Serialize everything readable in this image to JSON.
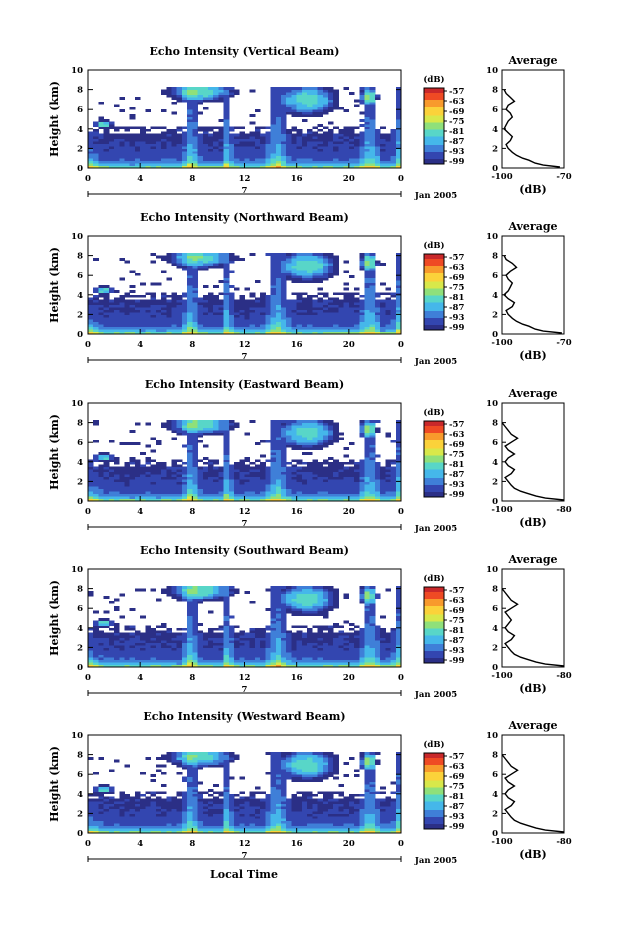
{
  "colors": {
    "scale": [
      "#2b2f86",
      "#3346b0",
      "#3f7fd8",
      "#45b7ea",
      "#58d6c8",
      "#8fe07a",
      "#d8e84a",
      "#fbd23a",
      "#f89a2c",
      "#ef4a24",
      "#c9282a"
    ],
    "axis": "#000000",
    "profile_line": "#000000",
    "background": "#ffffff"
  },
  "date_label": "Jan 2005",
  "day_marker": "7",
  "colorbar_unit": "(dB)",
  "colorbar_ticks": [
    "-57",
    "-63",
    "-69",
    "-75",
    "-81",
    "-87",
    "-93",
    "-99"
  ],
  "x_axis_label": "Local Time",
  "y_axis_label": "Height (km)",
  "average_title": "Average",
  "average_x_unit": "(dB)",
  "chart_data": [
    {
      "type": "heatmap",
      "title": "Echo Intensity (Vertical Beam)",
      "ylabel": "Height (km)",
      "ylim": [
        0,
        10
      ],
      "xlim": [
        0,
        24
      ],
      "x_ticks": [
        "0",
        "4",
        "8",
        "12",
        "16",
        "20",
        "0"
      ],
      "y_ticks": [
        "0",
        "2",
        "4",
        "6",
        "8",
        "10"
      ],
      "colorbar_ticks": [
        "-57",
        "-63",
        "-69",
        "-75",
        "-81",
        "-87",
        "-93",
        "-99"
      ],
      "average_profile": {
        "xlim": [
          -100,
          -70
        ],
        "x_ticks": [
          "-100",
          "-70"
        ],
        "height": [
          0.1,
          0.3,
          0.5,
          0.8,
          1.0,
          1.3,
          1.6,
          2.0,
          2.4,
          2.8,
          3.2,
          3.6,
          4.0,
          4.4,
          4.8,
          5.2,
          5.6,
          6.0,
          6.4,
          6.8,
          7.2,
          7.6,
          8.0
        ],
        "db": [
          -72,
          -80,
          -84,
          -87,
          -90,
          -93,
          -95,
          -97,
          -98,
          -96,
          -95,
          -97,
          -99,
          -98,
          -97,
          -95,
          -96,
          -98,
          -97,
          -94,
          -96,
          -98,
          -99
        ]
      }
    },
    {
      "type": "heatmap",
      "title": "Echo Intensity (Northward Beam)",
      "ylabel": "Height (km)",
      "ylim": [
        0,
        10
      ],
      "xlim": [
        0,
        24
      ],
      "x_ticks": [
        "0",
        "4",
        "8",
        "12",
        "16",
        "20",
        "0"
      ],
      "y_ticks": [
        "0",
        "2",
        "4",
        "6",
        "8",
        "10"
      ],
      "colorbar_ticks": [
        "-57",
        "-63",
        "-69",
        "-75",
        "-81",
        "-87",
        "-93",
        "-99"
      ],
      "average_profile": {
        "xlim": [
          -100,
          -70
        ],
        "x_ticks": [
          "-100",
          "-70"
        ],
        "height": [
          0.1,
          0.3,
          0.5,
          0.8,
          1.0,
          1.3,
          1.6,
          2.0,
          2.4,
          2.8,
          3.2,
          3.6,
          4.0,
          4.4,
          4.8,
          5.2,
          5.6,
          6.0,
          6.4,
          6.8,
          7.2,
          7.6,
          8.0
        ],
        "db": [
          -71,
          -80,
          -84,
          -87,
          -90,
          -93,
          -95,
          -97,
          -98,
          -95,
          -94,
          -97,
          -99,
          -97,
          -96,
          -95,
          -97,
          -98,
          -96,
          -93,
          -95,
          -98,
          -99
        ]
      }
    },
    {
      "type": "heatmap",
      "title": "Echo Intensity (Eastward Beam)",
      "ylabel": "Height (km)",
      "ylim": [
        0,
        10
      ],
      "xlim": [
        0,
        24
      ],
      "x_ticks": [
        "0",
        "4",
        "8",
        "12",
        "16",
        "20",
        "0"
      ],
      "y_ticks": [
        "0",
        "2",
        "4",
        "6",
        "8",
        "10"
      ],
      "colorbar_ticks": [
        "-57",
        "-63",
        "-69",
        "-75",
        "-81",
        "-87",
        "-93",
        "-99"
      ],
      "average_profile": {
        "xlim": [
          -100,
          -80
        ],
        "x_ticks": [
          "-100",
          "-80"
        ],
        "height": [
          0.1,
          0.3,
          0.5,
          0.8,
          1.0,
          1.3,
          1.6,
          2.0,
          2.4,
          2.8,
          3.2,
          3.6,
          4.0,
          4.4,
          4.8,
          5.2,
          5.6,
          6.0,
          6.4,
          6.8,
          7.2,
          7.6,
          8.0
        ],
        "db": [
          -80,
          -86,
          -89,
          -92,
          -94,
          -96,
          -97,
          -98,
          -99,
          -97,
          -96,
          -98,
          -99,
          -98,
          -96,
          -98,
          -99,
          -97,
          -95,
          -97,
          -98,
          -99,
          -100
        ]
      }
    },
    {
      "type": "heatmap",
      "title": "Echo Intensity (Southward Beam)",
      "ylabel": "Height (km)",
      "ylim": [
        0,
        10
      ],
      "xlim": [
        0,
        24
      ],
      "x_ticks": [
        "0",
        "4",
        "8",
        "12",
        "16",
        "20",
        "0"
      ],
      "y_ticks": [
        "0",
        "2",
        "4",
        "6",
        "8",
        "10"
      ],
      "colorbar_ticks": [
        "-57",
        "-63",
        "-69",
        "-75",
        "-81",
        "-87",
        "-93",
        "-99"
      ],
      "average_profile": {
        "xlim": [
          -100,
          -80
        ],
        "x_ticks": [
          "-100",
          "-80"
        ],
        "height": [
          0.1,
          0.3,
          0.5,
          0.8,
          1.0,
          1.3,
          1.6,
          2.0,
          2.4,
          2.8,
          3.2,
          3.6,
          4.0,
          4.4,
          4.8,
          5.2,
          5.6,
          6.0,
          6.4,
          6.8,
          7.2,
          7.6,
          8.0
        ],
        "db": [
          -80,
          -86,
          -89,
          -92,
          -94,
          -96,
          -97,
          -98,
          -99,
          -97,
          -96,
          -98,
          -99,
          -98,
          -97,
          -98,
          -99,
          -97,
          -95,
          -97,
          -98,
          -99,
          -100
        ]
      }
    },
    {
      "type": "heatmap",
      "title": "Echo Intensity (Westward Beam)",
      "ylabel": "Height (km)",
      "ylim": [
        0,
        10
      ],
      "xlim": [
        0,
        24
      ],
      "x_ticks": [
        "0",
        "4",
        "8",
        "12",
        "16",
        "20",
        "0"
      ],
      "y_ticks": [
        "0",
        "2",
        "4",
        "6",
        "8",
        "10"
      ],
      "colorbar_ticks": [
        "-57",
        "-63",
        "-69",
        "-75",
        "-81",
        "-87",
        "-93",
        "-99"
      ],
      "average_profile": {
        "xlim": [
          -100,
          -80
        ],
        "x_ticks": [
          "-100",
          "-80"
        ],
        "height": [
          0.1,
          0.3,
          0.5,
          0.8,
          1.0,
          1.3,
          1.6,
          2.0,
          2.4,
          2.8,
          3.2,
          3.6,
          4.0,
          4.4,
          4.8,
          5.2,
          5.6,
          6.0,
          6.4,
          6.8,
          7.2,
          7.6,
          8.0
        ],
        "db": [
          -80,
          -86,
          -89,
          -92,
          -94,
          -96,
          -97,
          -98,
          -99,
          -97,
          -96,
          -98,
          -99,
          -98,
          -96,
          -98,
          -99,
          -97,
          -95,
          -97,
          -98,
          -99,
          -100
        ]
      }
    }
  ]
}
